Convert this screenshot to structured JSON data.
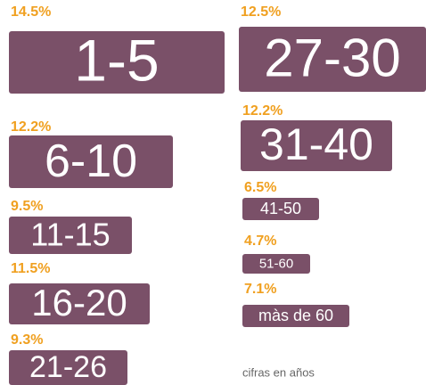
{
  "chart_data": {
    "type": "label-boxes",
    "categories": [
      "1-5",
      "6-10",
      "11-15",
      "16-20",
      "21-26",
      "27-30",
      "31-40",
      "41-50",
      "51-60",
      "màs de 60"
    ],
    "values": [
      14.5,
      12.2,
      9.5,
      11.5,
      9.3,
      12.5,
      12.2,
      6.5,
      4.7,
      7.1
    ],
    "value_labels": [
      "14.5%",
      "12.2%",
      "9.5%",
      "11.5%",
      "9.3%",
      "12.5%",
      "12.2%",
      "6.5%",
      "4.7%",
      "7.1%"
    ],
    "color": "#7a5068",
    "label_color": "#f0a020",
    "note": "cifras en años"
  }
}
